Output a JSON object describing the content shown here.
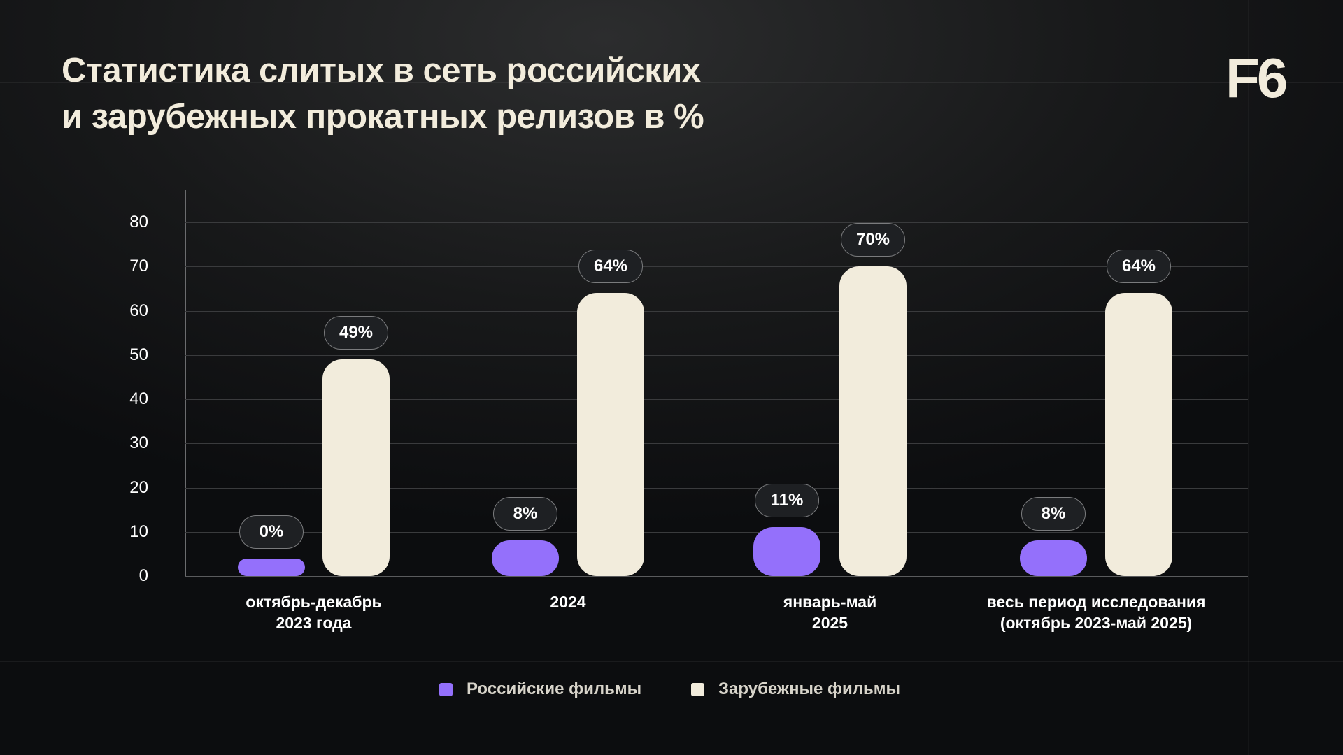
{
  "title": {
    "line1": "Статистика слитых в сеть российских",
    "line2": "и зарубежных прокатных релизов в %"
  },
  "logo": "F6",
  "colors": {
    "russian": "#9470fb",
    "foreign": "#f2ecdc"
  },
  "chart_data": {
    "type": "bar",
    "title": "Статистика слитых в сеть российских и зарубежных прокатных релизов в %",
    "xlabel": "",
    "ylabel": "",
    "ylim": [
      0,
      80
    ],
    "yticks": [
      0,
      10,
      20,
      30,
      40,
      50,
      60,
      70,
      80
    ],
    "grid": true,
    "legend_position": "bottom",
    "categories": [
      {
        "line1": "октябрь-декабрь",
        "line2": "2023 года"
      },
      {
        "line1": "2024",
        "line2": ""
      },
      {
        "line1": "январь-май",
        "line2": "2025"
      },
      {
        "line1": "весь период исследования",
        "line2": "(октябрь 2023-май 2025)"
      }
    ],
    "series": [
      {
        "name": "Российские фильмы",
        "values": [
          0,
          8,
          11,
          8
        ],
        "labels": [
          "0%",
          "8%",
          "11%",
          "8%"
        ]
      },
      {
        "name": "Зарубежные фильмы",
        "values": [
          49,
          64,
          70,
          64
        ],
        "labels": [
          "49%",
          "64%",
          "70%",
          "64%"
        ]
      }
    ]
  }
}
